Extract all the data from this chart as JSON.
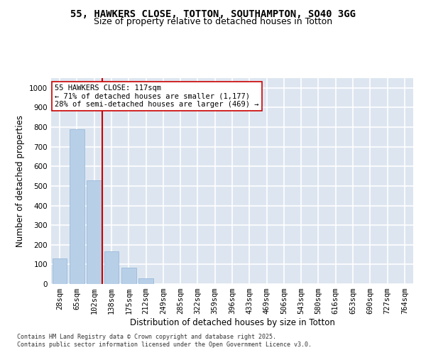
{
  "title_line1": "55, HAWKERS CLOSE, TOTTON, SOUTHAMPTON, SO40 3GG",
  "title_line2": "Size of property relative to detached houses in Totton",
  "xlabel": "Distribution of detached houses by size in Totton",
  "ylabel": "Number of detached properties",
  "categories": [
    "28sqm",
    "65sqm",
    "102sqm",
    "138sqm",
    "175sqm",
    "212sqm",
    "249sqm",
    "285sqm",
    "322sqm",
    "359sqm",
    "396sqm",
    "433sqm",
    "469sqm",
    "506sqm",
    "543sqm",
    "580sqm",
    "616sqm",
    "653sqm",
    "690sqm",
    "727sqm",
    "764sqm"
  ],
  "values": [
    130,
    790,
    530,
    165,
    85,
    30,
    0,
    0,
    0,
    0,
    0,
    0,
    0,
    0,
    0,
    0,
    0,
    0,
    0,
    0,
    0
  ],
  "bar_color": "#b8cfe8",
  "bar_edge_color": "#90b4d8",
  "vline_color": "#cc0000",
  "vline_pos": 2.45,
  "annotation_text": "55 HAWKERS CLOSE: 117sqm\n← 71% of detached houses are smaller (1,177)\n28% of semi-detached houses are larger (469) →",
  "annotation_box_facecolor": "#ffffff",
  "annotation_box_edgecolor": "#cc0000",
  "ylim": [
    0,
    1050
  ],
  "yticks": [
    0,
    100,
    200,
    300,
    400,
    500,
    600,
    700,
    800,
    900,
    1000
  ],
  "background_color": "#dde6f0",
  "grid_color": "#ffffff",
  "fig_facecolor": "#ffffff",
  "footer_line1": "Contains HM Land Registry data © Crown copyright and database right 2025.",
  "footer_line2": "Contains public sector information licensed under the Open Government Licence v3.0.",
  "title_fontsize": 10,
  "subtitle_fontsize": 9,
  "tick_fontsize": 7.5,
  "label_fontsize": 8.5,
  "footer_fontsize": 6,
  "annotation_fontsize": 7.5
}
